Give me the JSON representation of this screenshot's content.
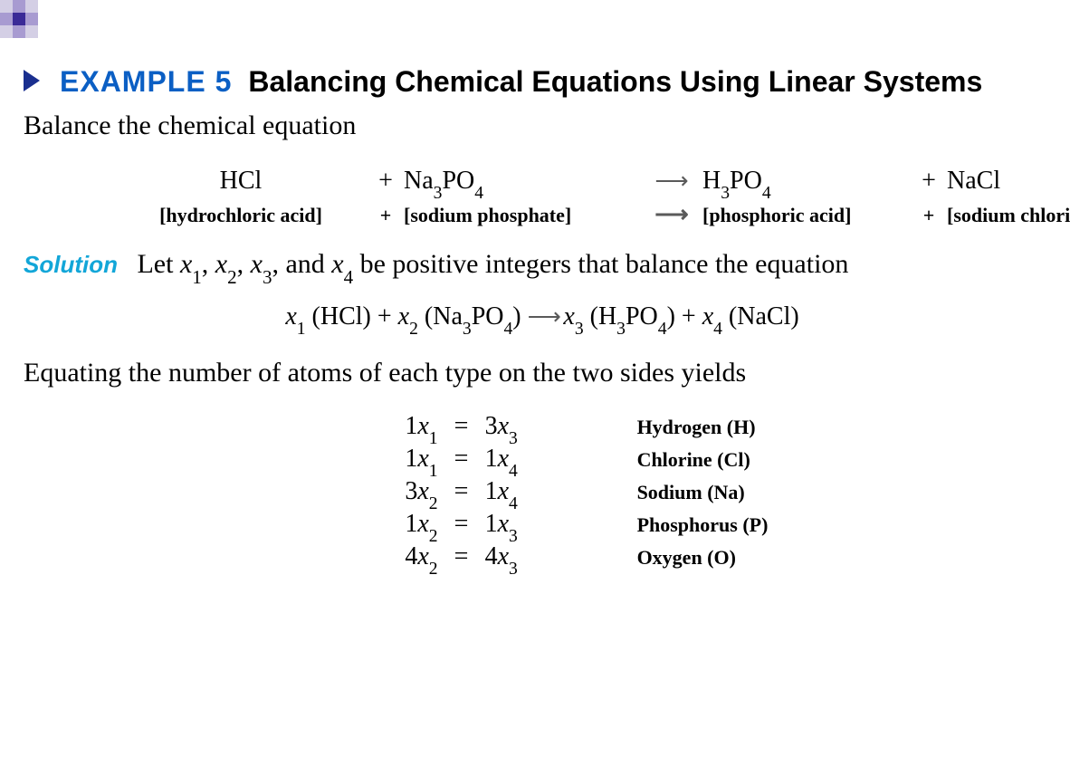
{
  "colors": {
    "accent_blue": "#0b5fc4",
    "solution_cyan": "#12a6d8",
    "checker_light": "#d4cfe5",
    "checker_mid": "#a89bd1",
    "checker_dark": "#3a2a97",
    "triangle": "#1a2f8f",
    "arrow_gray": "#5a5a5a"
  },
  "header": {
    "example_label": "EXAMPLE 5",
    "example_title": "Balancing Chemical Equations Using Linear Systems"
  },
  "intro_text": "Balance the chemical equation",
  "chem_equation": {
    "reactant1": {
      "formula_parts": [
        "HCl"
      ],
      "name": "[hydrochloric acid]"
    },
    "plus1": "+",
    "reactant2": {
      "formula_parts": [
        "Na",
        "3",
        "PO",
        "4"
      ],
      "name": "[sodium phosphate]"
    },
    "arrow": "⟶",
    "product1": {
      "formula_parts": [
        "H",
        "3",
        "PO",
        "4"
      ],
      "name": "[phosphoric acid]"
    },
    "plus2": "+",
    "product2": {
      "formula_parts": [
        "NaCl"
      ],
      "name": "[sodium chloride]"
    }
  },
  "solution_label": "Solution",
  "solution_text_pre": "Let ",
  "solution_vars": "x₁, x₂, x₃",
  "solution_text_mid": ", and ",
  "solution_var4": "x₄",
  "solution_text_post": " be positive integers that balance the equation",
  "coef_equation": {
    "text": "x₁ (HCl) + x₂ (Na₃PO₄) ⟶ x₃ (H₃PO₄) + x₄ (NaCl)"
  },
  "equating_text": "Equating the number of atoms of each type on the two sides yields",
  "atom_system": [
    {
      "lhs_coef": "1",
      "lhs_var": "x₁",
      "rhs_coef": "3",
      "rhs_var": "x₃",
      "label": "Hydrogen (H)"
    },
    {
      "lhs_coef": "1",
      "lhs_var": "x₁",
      "rhs_coef": "1",
      "rhs_var": "x₄",
      "label": "Chlorine (Cl)"
    },
    {
      "lhs_coef": "3",
      "lhs_var": "x₂",
      "rhs_coef": "1",
      "rhs_var": "x₄",
      "label": "Sodium (Na)"
    },
    {
      "lhs_coef": "1",
      "lhs_var": "x₂",
      "rhs_coef": "1",
      "rhs_var": "x₃",
      "label": "Phosphorus (P)"
    },
    {
      "lhs_coef": "4",
      "lhs_var": "x₂",
      "rhs_coef": "4",
      "rhs_var": "x₃",
      "label": "Oxygen (O)"
    }
  ],
  "checker_pattern": [
    "#d4cfe5",
    "#a89bd1",
    "#d4cfe5",
    "#ffffff",
    "#a89bd1",
    "#3a2a97",
    "#a89bd1",
    "#ffffff",
    "#d4cfe5",
    "#a89bd1",
    "#d4cfe5",
    "#ffffff",
    "#ffffff",
    "#ffffff",
    "#ffffff",
    "#ffffff"
  ]
}
